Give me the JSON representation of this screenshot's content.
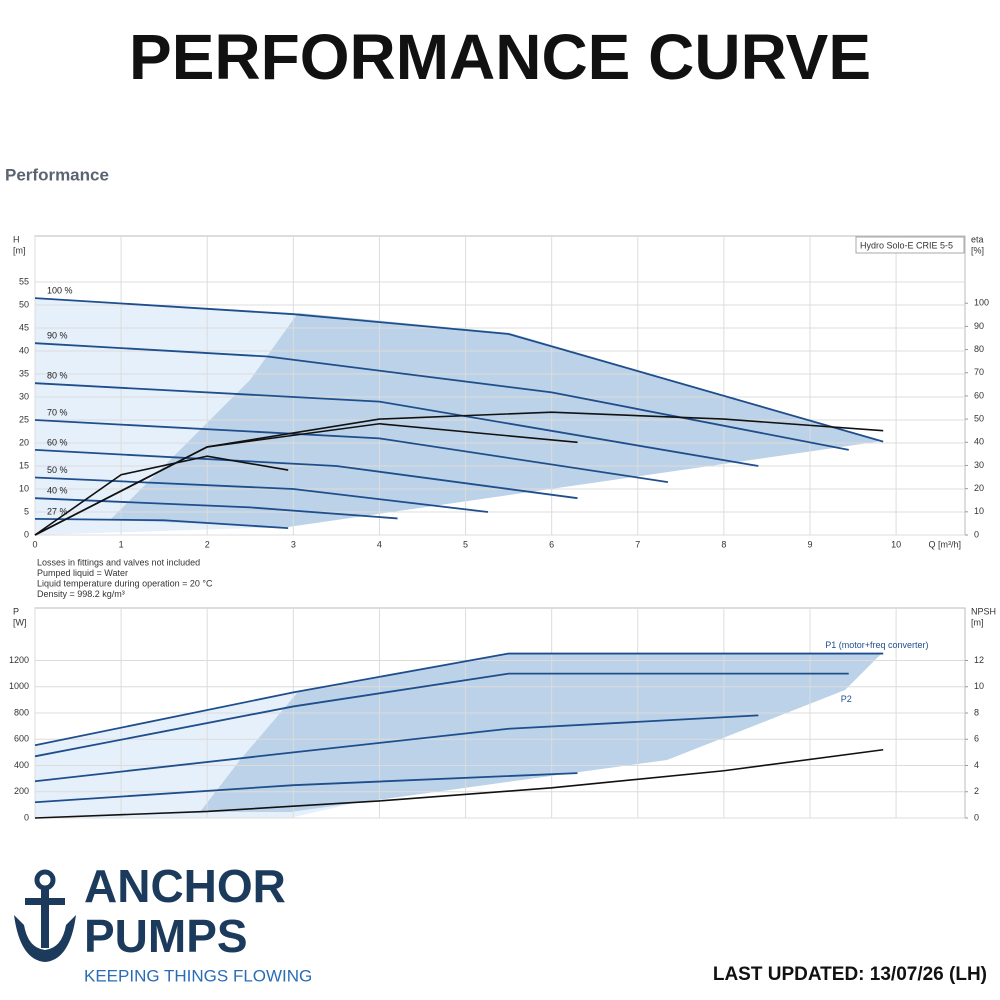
{
  "title": "PERFORMANCE CURVE",
  "section": "Performance",
  "chart_data": [
    {
      "type": "line",
      "legend_title": "Hydro Solo-E CRIE 5-5",
      "y_label": [
        "H",
        "[m]"
      ],
      "y2_label": [
        "eta",
        "[%]"
      ],
      "x_label": "Q [m³/h]",
      "xlim": [
        0,
        10.8
      ],
      "xticks": [
        0,
        1,
        2,
        3,
        4,
        5,
        6,
        7,
        8,
        9,
        10
      ],
      "ylim": [
        0,
        65
      ],
      "yticks": [
        0,
        5,
        10,
        15,
        20,
        25,
        30,
        35,
        40,
        45,
        50,
        55
      ],
      "y2lim": [
        0,
        129
      ],
      "y2ticks": [
        0,
        10,
        20,
        30,
        40,
        50,
        60,
        70,
        80,
        90,
        100
      ],
      "grid": true,
      "series": [
        {
          "name": "100 %",
          "color": "#1f4e8c",
          "x": [
            0,
            3,
            5.5,
            9.85
          ],
          "values": [
            51.5,
            48,
            43.7,
            20.3
          ]
        },
        {
          "name": "90 %",
          "color": "#1f4e8c",
          "x": [
            0,
            2.7,
            6,
            9.45
          ],
          "values": [
            41.7,
            38.8,
            31,
            18.5
          ]
        },
        {
          "name": "80 %",
          "color": "#1f4e8c",
          "x": [
            0,
            4,
            8.4
          ],
          "values": [
            33,
            29,
            15
          ]
        },
        {
          "name": "70 %",
          "color": "#1f4e8c",
          "x": [
            0,
            4,
            7.35
          ],
          "values": [
            25,
            21,
            11.5
          ]
        },
        {
          "name": "60 %",
          "color": "#1f4e8c",
          "x": [
            0,
            3.5,
            6.3
          ],
          "values": [
            18.5,
            15,
            8
          ]
        },
        {
          "name": "50 %",
          "color": "#1f4e8c",
          "x": [
            0,
            3,
            5.26
          ],
          "values": [
            12.5,
            10,
            5
          ]
        },
        {
          "name": "40 %",
          "color": "#1f4e8c",
          "x": [
            0,
            2.5,
            4.21
          ],
          "values": [
            8,
            6,
            3.6
          ]
        },
        {
          "name": "27 %",
          "color": "#1f4e8c",
          "x": [
            0,
            1.5,
            2.94
          ],
          "values": [
            3.5,
            3.2,
            1.5
          ]
        },
        {
          "color": "#111111",
          "axis": "y2",
          "x": [
            0,
            2,
            4,
            6,
            8,
            9.85
          ],
          "values": [
            0,
            38,
            50,
            53,
            50,
            45
          ]
        },
        {
          "color": "#111111",
          "axis": "y2",
          "x": [
            0,
            2,
            4,
            6.3
          ],
          "values": [
            0,
            38,
            48,
            40
          ]
        },
        {
          "color": "#111111",
          "axis": "y2",
          "x": [
            0,
            1,
            2,
            2.94
          ],
          "values": [
            0,
            26,
            34,
            28
          ]
        }
      ]
    },
    {
      "type": "line",
      "y_label": [
        "P",
        "[W]"
      ],
      "y2_label": [
        "NPSH",
        "[m]"
      ],
      "xlim": [
        0,
        10.8
      ],
      "ylim": [
        0,
        1600
      ],
      "yticks": [
        0,
        200,
        400,
        600,
        800,
        1000,
        1200
      ],
      "y2lim": [
        0,
        16
      ],
      "y2ticks": [
        0,
        2,
        4,
        6,
        8,
        10,
        12
      ],
      "grid": true,
      "series": [
        {
          "name": "P1 (motor+freq converter)",
          "color": "#1f4e8c",
          "x": [
            0,
            3,
            5.5,
            9.85
          ],
          "values": [
            554,
            957,
            1253,
            1253
          ]
        },
        {
          "name": "P2",
          "color": "#1f4e8c",
          "x": [
            0,
            3,
            5.5,
            9.45
          ],
          "values": [
            470,
            850,
            1100,
            1100
          ]
        },
        {
          "color": "#1f4e8c",
          "x": [
            0,
            3,
            5.5,
            8.4
          ],
          "values": [
            280,
            500,
            680,
            782
          ]
        },
        {
          "color": "#1f4e8c",
          "x": [
            0,
            3,
            6.3
          ],
          "values": [
            120,
            250,
            342
          ]
        },
        {
          "color": "#111111",
          "axis": "y2",
          "x": [
            0,
            2,
            4,
            6,
            8,
            9.85
          ],
          "values": [
            0,
            0.5,
            1.3,
            2.3,
            3.6,
            5.2
          ]
        }
      ]
    }
  ],
  "notes": [
    "Losses in fittings and valves not included",
    "Pumped liquid = Water",
    "Liquid temperature during operation = 20 °C",
    "Density = 998.2 kg/m³"
  ],
  "logo": {
    "line1": "ANCHOR",
    "line2": "PUMPS",
    "tagline": "KEEPING THINGS FLOWING"
  },
  "footer": "LAST UPDATED: 13/07/26 (LH)"
}
